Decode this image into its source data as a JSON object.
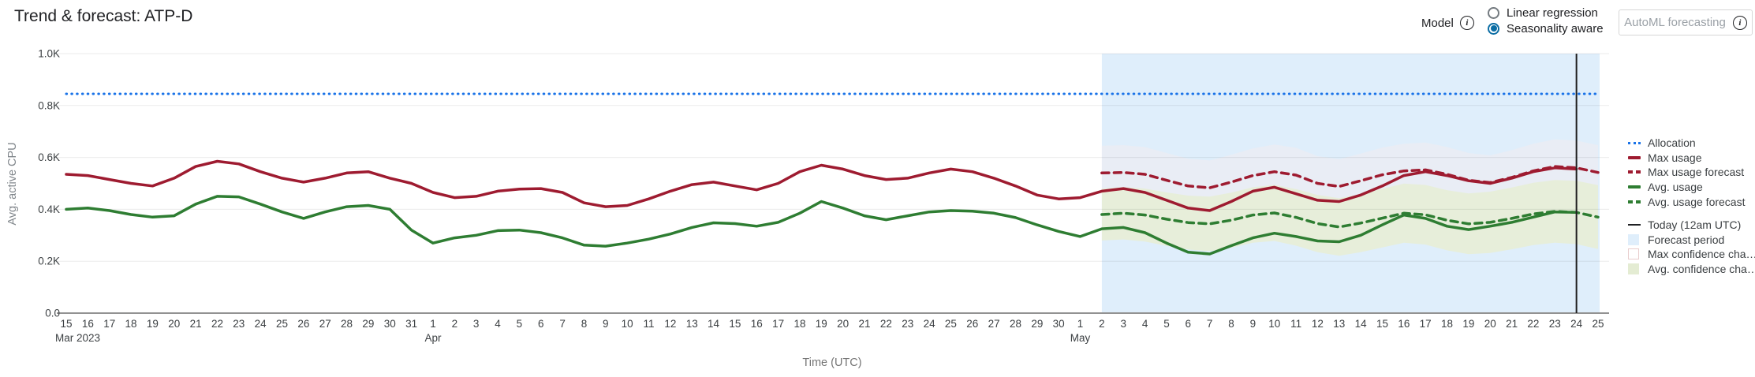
{
  "header": {
    "title": "Trend & forecast: ATP-D"
  },
  "icons": {
    "info": "i"
  },
  "model_control": {
    "label": "Model",
    "options": [
      {
        "label": "Linear regression",
        "selected": false
      },
      {
        "label": "Seasonality aware",
        "selected": true
      }
    ]
  },
  "automl_button": {
    "label": "AutoML forecasting",
    "disabled": true
  },
  "colors": {
    "allocation": "#1a73e8",
    "max_usage": "#9e1b30",
    "avg_usage": "#2e7d32",
    "forecast_region": "#dfeefb",
    "avg_confidence": "#e7eeda",
    "max_confidence": "#f6ecee",
    "today_line": "#1f1f1f",
    "radio_selected": "#0b6da4",
    "tick_text": "#3c4043",
    "axis_title_text": "#80868b"
  },
  "legend": {
    "items": [
      {
        "label": "Allocation",
        "swatch": "dotted-blue",
        "gap": false
      },
      {
        "label": "Max usage",
        "swatch": "solid-red",
        "gap": false
      },
      {
        "label": "Max usage forecast",
        "swatch": "dashed-red",
        "gap": false
      },
      {
        "label": "Avg. usage",
        "swatch": "solid-green",
        "gap": false
      },
      {
        "label": "Avg. usage forecast",
        "swatch": "dashed-green",
        "gap": false
      },
      {
        "label": "Today (12am UTC)",
        "swatch": "line-dark",
        "gap": true
      },
      {
        "label": "Forecast period",
        "swatch": "fill-blue",
        "gap": false
      },
      {
        "label": "Max confidence cha…",
        "swatch": "fill-pink",
        "gap": false
      },
      {
        "label": "Avg. confidence cha…",
        "swatch": "fill-green",
        "gap": false
      }
    ]
  },
  "chart_data": {
    "type": "line",
    "title": "Trend & forecast: ATP-D",
    "xlabel": "Time (UTC)",
    "ylabel": "Avg. active CPU",
    "ylim": [
      0,
      1000
    ],
    "y_ticks": [
      "0.0",
      "0.2K",
      "0.4K",
      "0.6K",
      "0.8K",
      "1.0K"
    ],
    "grid": true,
    "legend_position": "right",
    "x_days": [
      15,
      16,
      17,
      18,
      19,
      20,
      21,
      22,
      23,
      24,
      25,
      26,
      27,
      28,
      29,
      30,
      31,
      1,
      2,
      3,
      4,
      5,
      6,
      7,
      8,
      9,
      10,
      11,
      12,
      13,
      14,
      15,
      16,
      17,
      18,
      19,
      20,
      21,
      22,
      23,
      24,
      25,
      26,
      27,
      28,
      29,
      30,
      1,
      2,
      3,
      4,
      5,
      6,
      7,
      8,
      9,
      10,
      11,
      12,
      13,
      14,
      15,
      16,
      17,
      18,
      19,
      20,
      21,
      22,
      23,
      24,
      25
    ],
    "x_month_labels": [
      {
        "index": 0,
        "label": "Mar 2023"
      },
      {
        "index": 17,
        "label": "Apr"
      },
      {
        "index": 47,
        "label": "May"
      }
    ],
    "forecast_start_index": 48,
    "today_index": 70,
    "allocation_value": 845,
    "series": [
      {
        "name": "Allocation",
        "type": "hline",
        "style": "dotted",
        "color": "#1a73e8",
        "value": 845
      },
      {
        "name": "Max usage",
        "style": "solid",
        "color": "#9e1b30",
        "values": [
          535,
          530,
          515,
          500,
          490,
          520,
          565,
          585,
          575,
          545,
          520,
          505,
          520,
          540,
          545,
          520,
          500,
          465,
          445,
          450,
          470,
          478,
          480,
          465,
          425,
          410,
          415,
          440,
          470,
          495,
          505,
          490,
          475,
          500,
          545,
          570,
          555,
          530,
          515,
          520,
          540,
          555,
          545,
          520,
          490,
          455,
          440,
          445,
          470,
          480,
          465,
          435,
          405,
          395,
          430,
          470,
          485,
          460,
          435,
          430,
          455,
          490,
          530,
          545,
          530,
          510,
          500,
          520,
          545,
          560,
          555,
          null
        ]
      },
      {
        "name": "Max usage forecast",
        "style": "dashed",
        "color": "#9e1b30",
        "values": [
          null,
          null,
          null,
          null,
          null,
          null,
          null,
          null,
          null,
          null,
          null,
          null,
          null,
          null,
          null,
          null,
          null,
          null,
          null,
          null,
          null,
          null,
          null,
          null,
          null,
          null,
          null,
          null,
          null,
          null,
          null,
          null,
          null,
          null,
          null,
          null,
          null,
          null,
          null,
          null,
          null,
          null,
          null,
          null,
          null,
          null,
          null,
          null,
          540,
          542,
          535,
          512,
          490,
          483,
          505,
          530,
          545,
          532,
          500,
          488,
          510,
          533,
          548,
          552,
          535,
          512,
          503,
          523,
          548,
          565,
          560,
          542
        ],
        "confidence": {
          "fill": "#f6ecee",
          "opacity": 0.45,
          "upper": [
            645,
            647,
            640,
            617,
            595,
            588,
            610,
            635,
            650,
            637,
            605,
            593,
            615,
            638,
            653,
            657,
            640,
            617,
            608,
            628,
            653,
            670,
            665,
            647
          ],
          "lower": [
            435,
            437,
            430,
            407,
            385,
            378,
            400,
            425,
            440,
            427,
            395,
            383,
            405,
            428,
            443,
            447,
            430,
            407,
            398,
            418,
            443,
            460,
            455,
            437
          ]
        }
      },
      {
        "name": "Avg. usage",
        "style": "solid",
        "color": "#2e7d32",
        "values": [
          400,
          405,
          395,
          380,
          370,
          375,
          420,
          450,
          448,
          420,
          390,
          365,
          390,
          410,
          415,
          400,
          320,
          270,
          290,
          300,
          318,
          320,
          310,
          290,
          262,
          258,
          270,
          285,
          305,
          330,
          348,
          345,
          335,
          350,
          385,
          430,
          405,
          375,
          360,
          375,
          390,
          395,
          393,
          385,
          368,
          340,
          315,
          295,
          325,
          330,
          310,
          270,
          235,
          228,
          260,
          290,
          308,
          295,
          278,
          275,
          300,
          340,
          378,
          365,
          335,
          322,
          335,
          350,
          370,
          390,
          388,
          null
        ]
      },
      {
        "name": "Avg. usage forecast",
        "style": "dashed",
        "color": "#2e7d32",
        "values": [
          null,
          null,
          null,
          null,
          null,
          null,
          null,
          null,
          null,
          null,
          null,
          null,
          null,
          null,
          null,
          null,
          null,
          null,
          null,
          null,
          null,
          null,
          null,
          null,
          null,
          null,
          null,
          null,
          null,
          null,
          null,
          null,
          null,
          null,
          null,
          null,
          null,
          null,
          null,
          null,
          null,
          null,
          null,
          null,
          null,
          null,
          null,
          null,
          380,
          385,
          378,
          362,
          349,
          344,
          358,
          378,
          386,
          369,
          345,
          332,
          347,
          366,
          385,
          379,
          358,
          344,
          350,
          365,
          382,
          392,
          388,
          370
        ],
        "confidence": {
          "fill": "#e7eeda",
          "opacity": 1,
          "upper": [
            480,
            486,
            480,
            465,
            453,
            449,
            464,
            485,
            494,
            478,
            455,
            443,
            459,
            479,
            499,
            494,
            474,
            461,
            468,
            484,
            502,
            513,
            510,
            493
          ],
          "lower": [
            280,
            284,
            276,
            259,
            245,
            239,
            252,
            271,
            278,
            260,
            235,
            221,
            235,
            253,
            271,
            264,
            242,
            227,
            232,
            246,
            262,
            271,
            266,
            247
          ]
        }
      }
    ]
  }
}
